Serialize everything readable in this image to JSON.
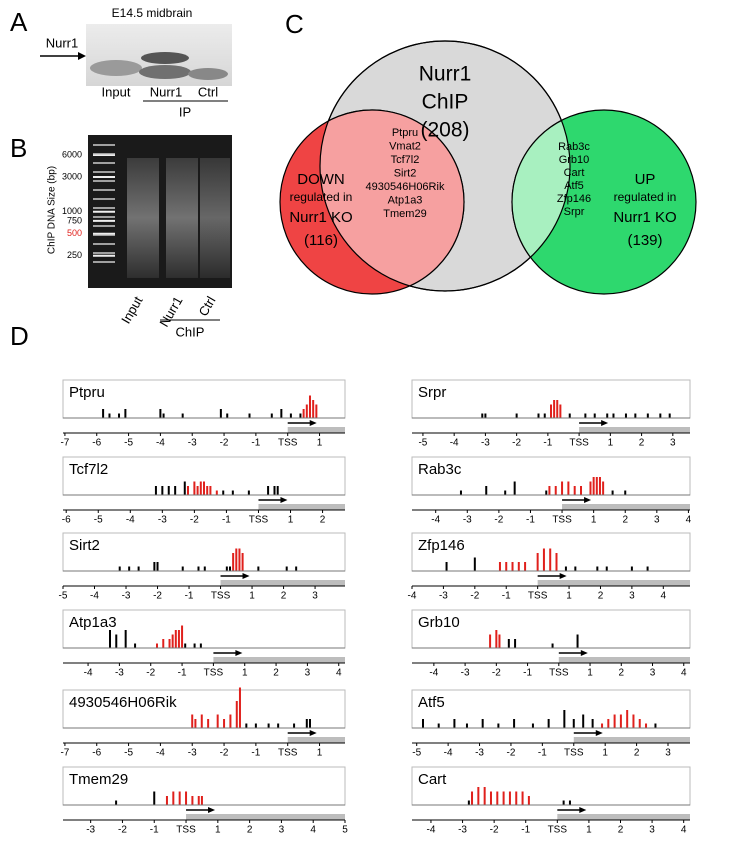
{
  "panel_a": {
    "label": "A",
    "title": "E14.5 midbrain",
    "band_label": "Nurr1",
    "lanes": [
      "Input",
      "Nurr1",
      "Ctrl"
    ],
    "group": "IP"
  },
  "panel_b": {
    "label": "B",
    "axis_label": "ChIP DNA Size (bp)",
    "ladder": [
      6000,
      3000,
      1000,
      750,
      500,
      250
    ],
    "label_colors": [
      "#000000",
      "#000000",
      "#000000",
      "#000000",
      "#e0201c",
      "#000000"
    ],
    "lanes": [
      "Input",
      "Nurr1",
      "Ctrl"
    ],
    "group": "ChIP"
  },
  "panel_c": {
    "label": "C",
    "chip": {
      "lines": [
        "Nurr1",
        "ChIP",
        "(208)"
      ],
      "color": "#d9d9d9"
    },
    "down": {
      "lines": [
        "DOWN",
        "regulated in",
        "Nurr1 KO",
        "(116)"
      ],
      "color": "#ef4444"
    },
    "up": {
      "lines": [
        "UP",
        "regulated in",
        "Nurr1 KO",
        "(139)"
      ],
      "color": "#2ed86e"
    },
    "down_overlap": [
      "Ptpru",
      "Vmat2",
      "Tcf7l2",
      "Sirt2",
      "4930546H06Rik",
      "Atp1a3",
      "Tmem29"
    ],
    "up_overlap": [
      "Rab3c",
      "Grb10",
      "Cart",
      "Atf5",
      "Zfp146",
      "Srpr"
    ]
  },
  "panel_d": {
    "label": "D",
    "bar_color": "#000000",
    "peak_color": "#e0201c",
    "tracks": [
      {
        "name": "Ptpru",
        "xlim": [
          -7.06,
          1.8
        ],
        "xticks": [
          -7,
          -6,
          -5,
          -4,
          -3,
          -2,
          -1,
          {
            "value": 0,
            "label": "TSS"
          },
          1
        ],
        "black": {
          "x": [
            -5.8,
            -5.6,
            -5.3,
            -5.1,
            -4.0,
            -3.9,
            -3.3,
            -2.1,
            -1.9,
            -1.2,
            -0.5,
            -0.2,
            0.1,
            0.4
          ],
          "h": [
            2,
            1,
            1,
            2,
            2,
            1,
            1,
            2,
            1,
            1,
            1,
            2,
            1,
            1
          ]
        },
        "red": {
          "x": [
            0.5,
            0.6,
            0.7,
            0.8,
            0.9
          ],
          "h": [
            2,
            3,
            5,
            4,
            3
          ]
        }
      },
      {
        "name": "Tcf7l2",
        "xlim": [
          -6.1,
          2.7
        ],
        "xticks": [
          -6,
          -5,
          -4,
          -3,
          -2,
          -1,
          {
            "value": 0,
            "label": "TSS"
          },
          1,
          2
        ],
        "black": {
          "x": [
            -3.2,
            -3.0,
            -2.8,
            -2.6,
            -2.3,
            -1.1,
            -0.8,
            -0.3,
            0.3,
            0.5,
            0.6
          ],
          "h": [
            2,
            2,
            2,
            2,
            3,
            1,
            1,
            1,
            2,
            2,
            2
          ]
        },
        "red": {
          "x": [
            -2.2,
            -2.0,
            -1.9,
            -1.8,
            -1.7,
            -1.6,
            -1.5,
            -1.3
          ],
          "h": [
            2,
            3,
            2,
            3,
            3,
            2,
            2,
            1
          ]
        }
      },
      {
        "name": "Sirt2",
        "xlim": [
          -5.0,
          3.95
        ],
        "xticks": [
          -5,
          -4,
          -3,
          -2,
          -1,
          {
            "value": 0,
            "label": "TSS"
          },
          1,
          2,
          3
        ],
        "black": {
          "x": [
            -3.2,
            -2.9,
            -2.6,
            -2.1,
            -2.0,
            -1.2,
            -0.7,
            -0.5,
            0.2,
            0.3,
            1.2,
            2.1,
            2.4
          ],
          "h": [
            1,
            1,
            1,
            2,
            2,
            1,
            1,
            1,
            1,
            1,
            1,
            1,
            1
          ]
        },
        "red": {
          "x": [
            0.4,
            0.5,
            0.6,
            0.7
          ],
          "h": [
            4,
            5,
            5,
            4
          ]
        }
      },
      {
        "name": "Atp1a3",
        "xlim": [
          -4.8,
          4.2
        ],
        "xticks": [
          -4,
          -3,
          -2,
          -1,
          {
            "value": 0,
            "label": "TSS"
          },
          1,
          2,
          3,
          4
        ],
        "black": {
          "x": [
            -3.3,
            -3.1,
            -2.8,
            -2.5,
            -0.9,
            -0.6,
            -0.4
          ],
          "h": [
            4,
            3,
            4,
            1,
            1,
            1,
            1
          ]
        },
        "red": {
          "x": [
            -1.8,
            -1.6,
            -1.4,
            -1.3,
            -1.2,
            -1.1,
            -1.0
          ],
          "h": [
            1,
            2,
            2,
            3,
            4,
            4,
            5
          ]
        }
      },
      {
        "name": "4930546H06Rik",
        "xlim": [
          -7.06,
          1.8
        ],
        "xticks": [
          -7,
          -6,
          -5,
          -4,
          -3,
          -2,
          -1,
          {
            "value": 0,
            "label": "TSS"
          },
          1
        ],
        "black": {
          "x": [
            -1.3,
            -1.0,
            -0.6,
            -0.3,
            0.2,
            0.6,
            0.7
          ],
          "h": [
            1,
            1,
            1,
            1,
            1,
            2,
            2
          ]
        },
        "red": {
          "x": [
            -3.0,
            -2.9,
            -2.7,
            -2.5,
            -2.2,
            -2.0,
            -1.8,
            -1.6,
            -1.5
          ],
          "h": [
            3,
            2,
            3,
            2,
            3,
            2,
            3,
            6,
            9
          ]
        }
      },
      {
        "name": "Tmem29",
        "xlim": [
          -3.87,
          5.0
        ],
        "xticks": [
          -3,
          -2,
          -1,
          {
            "value": 0,
            "label": "TSS"
          },
          1,
          2,
          3,
          4,
          5
        ],
        "black": {
          "x": [
            -2.2,
            -1.0
          ],
          "h": [
            1,
            3
          ]
        },
        "red": {
          "x": [
            -0.6,
            -0.4,
            -0.2,
            0.0,
            0.2,
            0.4,
            0.5
          ],
          "h": [
            2,
            3,
            3,
            3,
            2,
            2,
            2
          ]
        }
      },
      {
        "name": "Srpr",
        "xlim": [
          -5.35,
          3.55
        ],
        "xticks": [
          -5,
          -4,
          -3,
          -2,
          -1,
          {
            "value": 0,
            "label": "TSS"
          },
          1,
          2,
          3
        ],
        "black": {
          "x": [
            -3.1,
            -3.0,
            -2.0,
            -1.3,
            -1.1,
            -0.3,
            0.2,
            0.5,
            0.9,
            1.1,
            1.5,
            1.8,
            2.2,
            2.6,
            2.9
          ],
          "h": [
            1,
            1,
            1,
            1,
            1,
            1,
            1,
            1,
            1,
            1,
            1,
            1,
            1,
            1,
            1
          ]
        },
        "red": {
          "x": [
            -0.9,
            -0.8,
            -0.7,
            -0.6
          ],
          "h": [
            3,
            4,
            4,
            3
          ]
        }
      },
      {
        "name": "Rab3c",
        "xlim": [
          -4.75,
          4.05
        ],
        "xticks": [
          -4,
          -3,
          -2,
          -1,
          {
            "value": 0,
            "label": "TSS"
          },
          1,
          2,
          3,
          4
        ],
        "black": {
          "x": [
            -3.2,
            -2.4,
            -1.8,
            -1.5,
            -0.5,
            1.6,
            2.0
          ],
          "h": [
            1,
            2,
            1,
            3,
            1,
            1,
            1
          ]
        },
        "red": {
          "x": [
            -0.4,
            -0.2,
            0.0,
            0.2,
            0.4,
            0.6,
            0.9,
            1.0,
            1.1,
            1.2,
            1.3
          ],
          "h": [
            2,
            2,
            3,
            3,
            2,
            2,
            3,
            4,
            4,
            4,
            3
          ]
        }
      },
      {
        "name": "Zfp146",
        "xlim": [
          -4.0,
          4.85
        ],
        "xticks": [
          -4,
          -3,
          -2,
          -1,
          {
            "value": 0,
            "label": "TSS"
          },
          1,
          2,
          3,
          4
        ],
        "black": {
          "x": [
            -2.9,
            -2.0,
            0.9,
            1.2,
            1.9,
            2.2,
            3.0,
            3.5
          ],
          "h": [
            2,
            3,
            1,
            1,
            1,
            1,
            1,
            1
          ]
        },
        "red": {
          "x": [
            -1.2,
            -1.0,
            -0.8,
            -0.6,
            -0.4,
            0.0,
            0.2,
            0.4,
            0.6
          ],
          "h": [
            2,
            2,
            2,
            2,
            2,
            4,
            5,
            5,
            4
          ]
        }
      },
      {
        "name": "Grb10",
        "xlim": [
          -4.7,
          4.2
        ],
        "xticks": [
          -4,
          -3,
          -2,
          -1,
          {
            "value": 0,
            "label": "TSS"
          },
          1,
          2,
          3,
          4
        ],
        "black": {
          "x": [
            -1.6,
            -1.4,
            -0.2,
            0.6
          ],
          "h": [
            2,
            2,
            1,
            3
          ]
        },
        "red": {
          "x": [
            -2.2,
            -2.0,
            -1.9
          ],
          "h": [
            3,
            4,
            3
          ]
        }
      },
      {
        "name": "Atf5",
        "xlim": [
          -5.15,
          3.7
        ],
        "xticks": [
          -5,
          -4,
          -3,
          -2,
          -1,
          {
            "value": 0,
            "label": "TSS"
          },
          1,
          2,
          3
        ],
        "black": {
          "x": [
            -4.8,
            -4.3,
            -3.8,
            -3.4,
            -2.9,
            -2.4,
            -1.9,
            -1.3,
            -0.8,
            -0.3,
            0.0,
            0.3,
            0.6,
            2.6
          ],
          "h": [
            2,
            1,
            2,
            1,
            2,
            1,
            2,
            1,
            2,
            4,
            2,
            3,
            2,
            1
          ]
        },
        "red": {
          "x": [
            0.9,
            1.1,
            1.3,
            1.5,
            1.7,
            1.9,
            2.1,
            2.3
          ],
          "h": [
            1,
            2,
            3,
            3,
            4,
            3,
            2,
            1
          ]
        }
      },
      {
        "name": "Cart",
        "xlim": [
          -4.6,
          4.2
        ],
        "xticks": [
          -4,
          -3,
          -2,
          -1,
          {
            "value": 0,
            "label": "TSS"
          },
          1,
          2,
          3,
          4
        ],
        "black": {
          "x": [
            -2.8,
            0.2,
            0.4
          ],
          "h": [
            1,
            1,
            1
          ]
        },
        "red": {
          "x": [
            -2.7,
            -2.5,
            -2.3,
            -2.1,
            -1.9,
            -1.7,
            -1.5,
            -1.3,
            -1.1,
            -0.9
          ],
          "h": [
            3,
            4,
            4,
            3,
            3,
            3,
            3,
            3,
            3,
            2
          ]
        }
      }
    ]
  }
}
